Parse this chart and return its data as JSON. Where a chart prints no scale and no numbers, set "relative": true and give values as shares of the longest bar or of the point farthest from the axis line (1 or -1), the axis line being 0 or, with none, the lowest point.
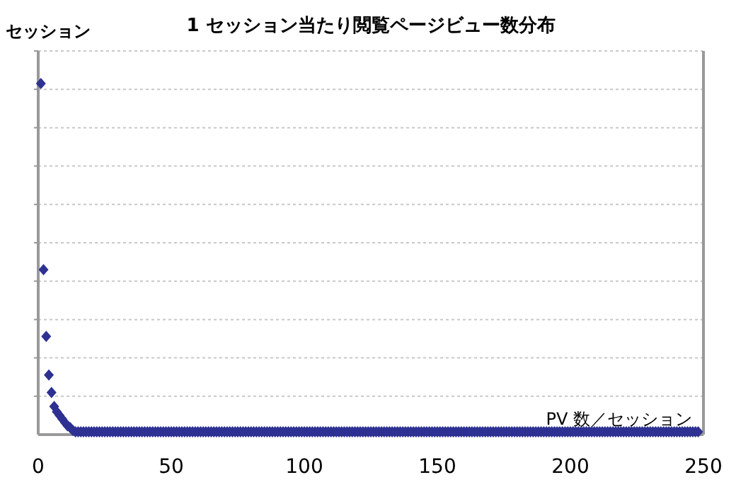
{
  "chart_data": {
    "type": "scatter",
    "title": "1 セッション当たり閲覧ページビュー数分布",
    "ylabel": "セッション",
    "xlabel": "PV 数／セッション",
    "relative": true,
    "marker": "diamond",
    "grid": "y",
    "xlim": [
      0,
      250
    ],
    "xticks": [
      0,
      50,
      100,
      150,
      200,
      250
    ],
    "x": [
      1,
      2,
      3,
      4,
      5,
      6,
      7,
      8,
      9,
      10,
      11,
      12,
      13,
      14,
      15,
      16,
      17,
      18,
      19,
      20,
      21,
      22,
      23,
      24,
      25,
      26,
      27,
      28,
      29,
      30,
      31,
      32,
      33,
      34,
      35,
      36,
      37,
      38,
      39,
      40,
      41,
      42,
      43,
      44,
      45,
      46,
      47,
      48,
      49,
      50,
      51,
      52,
      53,
      54,
      55,
      56,
      57,
      58,
      59,
      60,
      61,
      62,
      63,
      64,
      65,
      66,
      67,
      68,
      69,
      70,
      71,
      72,
      73,
      74,
      75,
      76,
      77,
      78,
      79,
      80,
      81,
      82,
      83,
      84,
      85,
      86,
      87,
      88,
      89,
      90,
      91,
      92,
      93,
      94,
      95,
      96,
      97,
      98,
      99,
      100,
      101,
      102,
      103,
      104,
      105,
      106,
      107,
      108,
      109,
      110,
      111,
      112,
      113,
      114,
      115,
      116,
      117,
      118,
      119,
      120,
      121,
      122,
      123,
      124,
      125,
      126,
      127,
      128,
      129,
      130,
      131,
      132,
      133,
      134,
      135,
      136,
      137,
      138,
      139,
      140,
      141,
      142,
      143,
      144,
      145,
      146,
      147,
      148,
      149,
      150,
      151,
      152,
      153,
      154,
      155,
      156,
      157,
      158,
      159,
      160,
      161,
      162,
      163,
      164,
      165,
      166,
      167,
      168,
      169,
      170,
      171,
      172,
      173,
      174,
      175,
      176,
      177,
      178,
      179,
      180,
      181,
      182,
      183,
      184,
      185,
      186,
      187,
      188,
      189,
      190,
      191,
      192,
      193,
      194,
      195,
      196,
      197,
      198,
      199,
      200,
      201,
      202,
      203,
      204,
      205,
      206,
      207,
      208,
      209,
      210,
      211,
      212,
      213,
      214,
      215,
      216,
      217,
      218,
      219,
      220,
      221,
      222,
      223,
      224,
      225,
      226,
      227,
      228,
      229,
      230,
      231,
      232,
      233,
      234,
      235,
      236,
      237,
      238,
      239,
      240,
      241,
      242,
      243,
      244,
      245,
      246,
      247,
      248
    ],
    "series": [
      {
        "color": "#2e3192",
        "values": [
          1,
          0.47,
          0.28,
          0.17,
          0.12,
          0.08,
          0.065,
          0.055,
          0.045,
          0.035,
          0.025,
          0.02,
          0.012,
          0.008,
          0.008,
          0.008,
          0.008,
          0.008,
          0.008,
          0.008,
          0.008,
          0.008,
          0.008,
          0.008,
          0.008,
          0.008,
          0.008,
          0.008,
          0.008,
          0.008,
          0.008,
          0.008,
          0.008,
          0.008,
          0.008,
          0.008,
          0.008,
          0.008,
          0.008,
          0.008,
          0.008,
          0.008,
          0.008,
          0.008,
          0.008,
          0.008,
          0.008,
          0.008,
          0.008,
          0.008,
          0.008,
          0.008,
          0.008,
          0.008,
          0.008,
          0.008,
          0.008,
          0.008,
          0.008,
          0.008,
          0.008,
          0.008,
          0.008,
          0.008,
          0.008,
          0.008,
          0.008,
          0.008,
          0.008,
          0.008,
          0.008,
          0.008,
          0.008,
          0.008,
          0.008,
          0.008,
          0.008,
          0.008,
          0.008,
          0.008,
          0.008,
          0.008,
          0.008,
          0.008,
          0.008,
          0.008,
          0.008,
          0.008,
          0.008,
          0.008,
          0.008,
          0.008,
          0.008,
          0.008,
          0.008,
          0.008,
          0.008,
          0.008,
          0.008,
          0.008,
          0.008,
          0.008,
          0.008,
          0.008,
          0.008,
          0.008,
          0.008,
          0.008,
          0.008,
          0.008,
          0.008,
          0.008,
          0.008,
          0.008,
          0.008,
          0.008,
          0.008,
          0.008,
          0.008,
          0.008,
          0.008,
          0.008,
          0.008,
          0.008,
          0.008,
          0.008,
          0.008,
          0.008,
          0.008,
          0.008,
          0.008,
          0.008,
          0.008,
          0.008,
          0.008,
          0.008,
          0.008,
          0.008,
          0.008,
          0.008,
          0.008,
          0.008,
          0.008,
          0.008,
          0.008,
          0.008,
          0.008,
          0.008,
          0.008,
          0.008,
          0.008,
          0.008,
          0.008,
          0.008,
          0.008,
          0.008,
          0.008,
          0.008,
          0.008,
          0.008,
          0.008,
          0.008,
          0.008,
          0.008,
          0.008,
          0.008,
          0.008,
          0.008,
          0.008,
          0.008,
          0.008,
          0.008,
          0.008,
          0.008,
          0.008,
          0.008,
          0.008,
          0.008,
          0.008,
          0.008,
          0.008,
          0.008,
          0.008,
          0.008,
          0.008,
          0.008,
          0.008,
          0.008,
          0.008,
          0.008,
          0.008,
          0.008,
          0.008,
          0.008,
          0.008,
          0.008,
          0.008,
          0.008,
          0.008,
          0.008,
          0.008,
          0.008,
          0.008,
          0.008,
          0.008,
          0.008,
          0.008,
          0.008,
          0.008,
          0.008,
          0.008,
          0.008,
          0.008,
          0.008,
          0.008,
          0.008,
          0.008,
          0.008,
          0.008,
          0.008,
          0.008,
          0.008,
          0.008,
          0.008,
          0.008,
          0.008,
          0.008,
          0.008,
          0.008,
          0.008,
          0.008,
          0.008,
          0.008,
          0.008,
          0.008,
          0.008,
          0.008,
          0.008,
          0.008,
          0.008,
          0.008,
          0.008,
          0.008,
          0.008,
          0.008,
          0.008,
          0.008,
          0.008
        ]
      }
    ]
  }
}
